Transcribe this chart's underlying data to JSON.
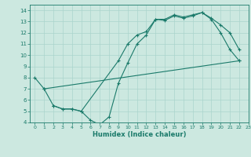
{
  "xlabel": "Humidex (Indice chaleur)",
  "ylabel": "",
  "bg_color": "#cce8e0",
  "grid_color": "#aad4cc",
  "line_color": "#1a7a6a",
  "xlim": [
    -0.5,
    23
  ],
  "ylim": [
    4,
    14.5
  ],
  "xticks": [
    0,
    1,
    2,
    3,
    4,
    5,
    6,
    7,
    8,
    9,
    10,
    11,
    12,
    13,
    14,
    15,
    16,
    17,
    18,
    19,
    20,
    21,
    22,
    23
  ],
  "yticks": [
    4,
    5,
    6,
    7,
    8,
    9,
    10,
    11,
    12,
    13,
    14
  ],
  "series1_x": [
    0,
    1,
    2,
    3,
    4,
    5,
    9,
    10,
    11,
    12,
    13,
    14,
    15,
    16,
    17,
    18,
    19,
    20,
    21,
    22
  ],
  "series1_y": [
    8.0,
    7.0,
    5.5,
    5.2,
    5.2,
    5.0,
    9.5,
    11.0,
    11.8,
    12.1,
    13.2,
    13.1,
    13.5,
    13.3,
    13.5,
    13.8,
    13.2,
    12.0,
    10.5,
    9.5
  ],
  "series2_x": [
    1,
    22
  ],
  "series2_y": [
    7.0,
    9.5
  ],
  "series3_x": [
    2,
    3,
    4,
    5,
    6,
    7,
    8,
    9,
    10,
    11,
    12,
    13,
    14,
    15,
    16,
    17,
    18,
    19,
    20,
    21,
    22
  ],
  "series3_y": [
    5.5,
    5.2,
    5.2,
    5.0,
    4.2,
    3.8,
    4.5,
    7.5,
    9.3,
    11.0,
    11.8,
    13.2,
    13.2,
    13.6,
    13.4,
    13.6,
    13.8,
    13.3,
    12.7,
    12.0,
    10.5
  ]
}
